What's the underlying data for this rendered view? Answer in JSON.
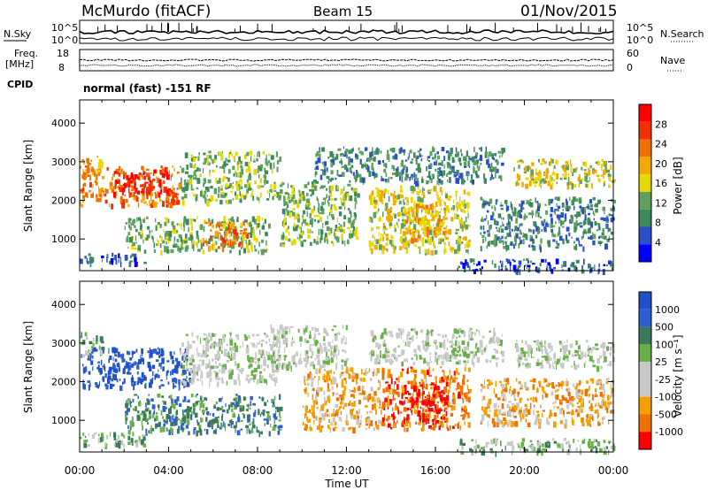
{
  "header": {
    "site": "McMurdo (fitACF)",
    "beam": "Beam 15",
    "date": "01/Nov/2015"
  },
  "top_panels": {
    "nsky_label": "N.Sky",
    "nsearch_label": "N.Search",
    "nsky_ticks": [
      "10^5",
      "10^0"
    ],
    "nsearch_ticks": [
      "10^5",
      "10^0"
    ],
    "freq_label_1": "Freq.",
    "freq_label_2": "[MHz]",
    "freq_ticks": [
      "18",
      "8"
    ],
    "nave_label": "Nave",
    "nave_ticks": [
      "60",
      "0"
    ],
    "cpid_label": "CPID",
    "cpid_text": "normal (fast) -151 RF"
  },
  "colors": {
    "power": [
      "#0000ff",
      "#2a4fc8",
      "#3a8a5a",
      "#5fa05f",
      "#e8d800",
      "#f5a800",
      "#f07000",
      "#f03000",
      "#ff0000"
    ],
    "velocity": [
      "#2050c8",
      "#2c5fd0",
      "#3a7a5a",
      "#6ab04a",
      "#c8c8c8",
      "#c8c8c8",
      "#f5a000",
      "#f07000",
      "#ff0000"
    ]
  },
  "chart_data": [
    {
      "type": "heatmap",
      "name": "power",
      "ylabel": "Slant Range [km]",
      "yticks": [
        "1000",
        "2000",
        "3000",
        "4000"
      ],
      "xticks": [
        "00:00",
        "04:00",
        "08:00",
        "12:00",
        "16:00",
        "20:00",
        "00:00"
      ],
      "xlim": [
        0,
        24
      ],
      "ylim": [
        180,
        4600
      ],
      "colorbar_label": "Power [dB]",
      "colorbar_ticks": [
        "4",
        "8",
        "12",
        "16",
        "20",
        "24",
        "28"
      ],
      "regions": [
        {
          "t0": 0.0,
          "t1": 4.5,
          "r0": 1900,
          "r1": 2900,
          "level": 6
        },
        {
          "t0": 1.5,
          "t1": 4.0,
          "r0": 2200,
          "r1": 2800,
          "level": 8
        },
        {
          "t0": 0.0,
          "t1": 1.0,
          "r0": 2600,
          "r1": 3200,
          "level": 5
        },
        {
          "t0": 0.0,
          "t1": 3.0,
          "r0": 380,
          "r1": 650,
          "level": 1
        },
        {
          "t0": 2.0,
          "t1": 8.5,
          "r0": 700,
          "r1": 1600,
          "level": 3
        },
        {
          "t0": 5.5,
          "t1": 7.5,
          "r0": 800,
          "r1": 1500,
          "level": 6
        },
        {
          "t0": 4.5,
          "t1": 9.0,
          "r0": 2000,
          "r1": 3300,
          "level": 3
        },
        {
          "t0": 9.0,
          "t1": 12.5,
          "r0": 900,
          "r1": 2500,
          "level": 3
        },
        {
          "t0": 10.5,
          "t1": 13.0,
          "r0": 2500,
          "r1": 3400,
          "level": 2
        },
        {
          "t0": 13.0,
          "t1": 17.5,
          "r0": 700,
          "r1": 2400,
          "level": 4
        },
        {
          "t0": 14.5,
          "t1": 16.5,
          "r0": 1000,
          "r1": 2000,
          "level": 5
        },
        {
          "t0": 13.0,
          "t1": 19.0,
          "r0": 2500,
          "r1": 3400,
          "level": 2
        },
        {
          "t0": 18.0,
          "t1": 24.0,
          "r0": 800,
          "r1": 2100,
          "level": 2
        },
        {
          "t0": 19.5,
          "t1": 24.0,
          "r0": 2400,
          "r1": 3100,
          "level": 4
        },
        {
          "t0": 17.0,
          "t1": 24.0,
          "r0": 200,
          "r1": 500,
          "level": 1
        }
      ]
    },
    {
      "type": "heatmap",
      "name": "velocity",
      "ylabel": "Slant Range [km]",
      "yticks": [
        "1000",
        "2000",
        "3000",
        "4000"
      ],
      "xticks": [
        "00:00",
        "04:00",
        "08:00",
        "12:00",
        "16:00",
        "20:00",
        "00:00"
      ],
      "xlim": [
        0,
        24
      ],
      "ylim": [
        180,
        4600
      ],
      "xlabel": "Time UT",
      "colorbar_label": "Velocity [m s⁻¹]",
      "colorbar_ticks": [
        "1000",
        "500",
        "100",
        "25",
        "-25",
        "-100",
        "-500",
        "-1000"
      ],
      "regions": [
        {
          "t0": 0.0,
          "t1": 5.0,
          "r0": 1900,
          "r1": 2900,
          "level": 0
        },
        {
          "t0": 0.0,
          "t1": 1.0,
          "r0": 2700,
          "r1": 3300,
          "level": 3
        },
        {
          "t0": 0.0,
          "t1": 3.0,
          "r0": 380,
          "r1": 700,
          "level": 3
        },
        {
          "t0": 2.0,
          "t1": 9.0,
          "r0": 700,
          "r1": 1700,
          "level": 2
        },
        {
          "t0": 4.5,
          "t1": 9.0,
          "r0": 2000,
          "r1": 3300,
          "level": 4
        },
        {
          "t0": 8.5,
          "t1": 12.0,
          "r0": 2400,
          "r1": 3500,
          "level": 4
        },
        {
          "t0": 10.0,
          "t1": 13.5,
          "r0": 800,
          "r1": 2400,
          "level": 6
        },
        {
          "t0": 13.5,
          "t1": 17.5,
          "r0": 800,
          "r1": 2400,
          "level": 7
        },
        {
          "t0": 14.5,
          "t1": 16.5,
          "r0": 1000,
          "r1": 2000,
          "level": 8
        },
        {
          "t0": 13.0,
          "t1": 19.0,
          "r0": 2500,
          "r1": 3400,
          "level": 4
        },
        {
          "t0": 18.0,
          "t1": 24.0,
          "r0": 900,
          "r1": 2100,
          "level": 6
        },
        {
          "t0": 19.5,
          "t1": 24.0,
          "r0": 2400,
          "r1": 3100,
          "level": 4
        },
        {
          "t0": 17.0,
          "t1": 24.0,
          "r0": 200,
          "r1": 550,
          "level": 3
        }
      ]
    }
  ]
}
